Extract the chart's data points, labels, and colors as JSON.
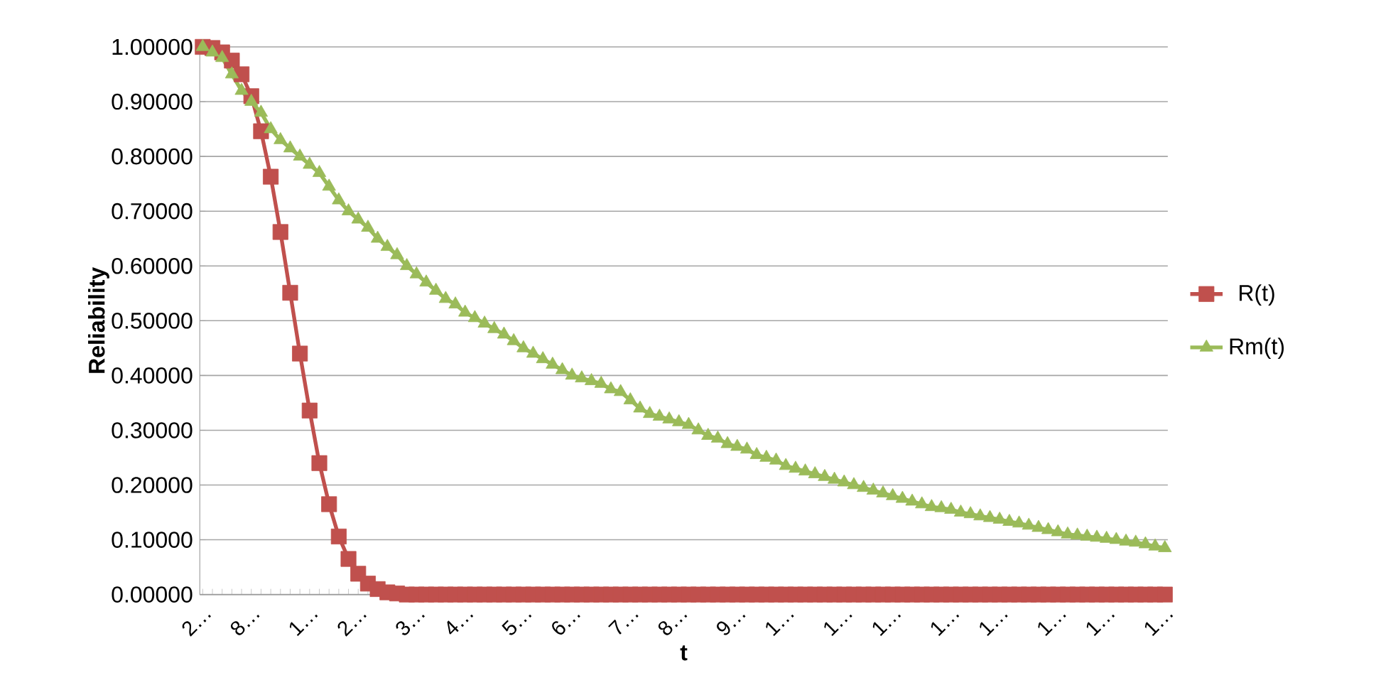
{
  "chart_data": {
    "type": "line",
    "xlabel": "t",
    "ylabel": "Reliability",
    "categories": [
      "2…",
      null,
      null,
      null,
      null,
      "8…",
      null,
      null,
      null,
      null,
      null,
      "1…",
      null,
      null,
      null,
      null,
      "2…",
      null,
      null,
      null,
      null,
      null,
      "3…",
      null,
      null,
      null,
      null,
      "4…",
      null,
      null,
      null,
      null,
      null,
      "5…",
      null,
      null,
      null,
      null,
      "6…",
      null,
      null,
      null,
      null,
      null,
      "7…",
      null,
      null,
      null,
      null,
      "8…",
      null,
      null,
      null,
      null,
      null,
      "9…",
      null,
      null,
      null,
      null,
      "1…",
      null,
      null,
      null,
      null,
      null,
      "1…",
      null,
      null,
      null,
      null,
      "1…",
      null,
      null,
      null,
      null,
      null,
      "1…",
      null,
      null,
      null,
      null,
      "1…",
      null,
      null,
      null,
      null,
      null,
      "1…",
      null,
      null,
      null,
      null,
      "1…",
      null,
      null,
      null,
      null,
      null,
      "1…"
    ],
    "series": [
      {
        "name": "R(t)",
        "color": "#c0504d",
        "marker": "square",
        "values": [
          1.0,
          0.998,
          0.99,
          0.975,
          0.95,
          0.91,
          0.846,
          0.763,
          0.662,
          0.551,
          0.44,
          0.336,
          0.24,
          0.165,
          0.106,
          0.065,
          0.038,
          0.02,
          0.01,
          0.004,
          0.002,
          0,
          0,
          0,
          0,
          0,
          0,
          0,
          0,
          0,
          0,
          0,
          0,
          0,
          0,
          0,
          0,
          0,
          0,
          0,
          0,
          0,
          0,
          0,
          0,
          0,
          0,
          0,
          0,
          0,
          0,
          0,
          0,
          0,
          0,
          0,
          0,
          0,
          0,
          0,
          0,
          0,
          0,
          0,
          0,
          0,
          0,
          0,
          0,
          0,
          0,
          0,
          0,
          0,
          0,
          0,
          0,
          0,
          0,
          0,
          0,
          0,
          0,
          0,
          0,
          0,
          0,
          0,
          0,
          0,
          0,
          0,
          0,
          0,
          0,
          0,
          0,
          0,
          0,
          0
        ]
      },
      {
        "name": "Rm(t)",
        "color": "#9bbb59",
        "marker": "triangle",
        "values": [
          1.0,
          0.99,
          0.98,
          0.95,
          0.92,
          0.9,
          0.88,
          0.85,
          0.83,
          0.815,
          0.8,
          0.785,
          0.77,
          0.745,
          0.72,
          0.7,
          0.685,
          0.67,
          0.65,
          0.635,
          0.62,
          0.6,
          0.585,
          0.57,
          0.555,
          0.54,
          0.53,
          0.515,
          0.505,
          0.495,
          0.485,
          0.475,
          0.463,
          0.45,
          0.44,
          0.43,
          0.42,
          0.41,
          0.4,
          0.395,
          0.39,
          0.385,
          0.375,
          0.37,
          0.355,
          0.34,
          0.33,
          0.325,
          0.32,
          0.315,
          0.31,
          0.3,
          0.29,
          0.285,
          0.275,
          0.27,
          0.265,
          0.255,
          0.25,
          0.245,
          0.235,
          0.23,
          0.225,
          0.22,
          0.215,
          0.21,
          0.205,
          0.2,
          0.195,
          0.19,
          0.185,
          0.18,
          0.175,
          0.17,
          0.165,
          0.16,
          0.158,
          0.155,
          0.15,
          0.147,
          0.143,
          0.14,
          0.137,
          0.133,
          0.13,
          0.126,
          0.122,
          0.118,
          0.114,
          0.11,
          0.108,
          0.106,
          0.104,
          0.102,
          0.1,
          0.097,
          0.095,
          0.092,
          0.088,
          0.085
        ]
      }
    ],
    "ylim": [
      0,
      1
    ],
    "yticks": [
      {
        "value": 0,
        "label": "0.00000"
      },
      {
        "value": 0.1,
        "label": "0.10000"
      },
      {
        "value": 0.2,
        "label": "0.20000"
      },
      {
        "value": 0.3,
        "label": "0.30000"
      },
      {
        "value": 0.4,
        "label": "0.40000"
      },
      {
        "value": 0.5,
        "label": "0.50000"
      },
      {
        "value": 0.6,
        "label": "0.60000"
      },
      {
        "value": 0.7,
        "label": "0.70000"
      },
      {
        "value": 0.8,
        "label": "0.80000"
      },
      {
        "value": 0.9,
        "label": "0.90000"
      },
      {
        "value": 1,
        "label": "1.00000"
      }
    ],
    "grid": "y",
    "legend": "right"
  }
}
